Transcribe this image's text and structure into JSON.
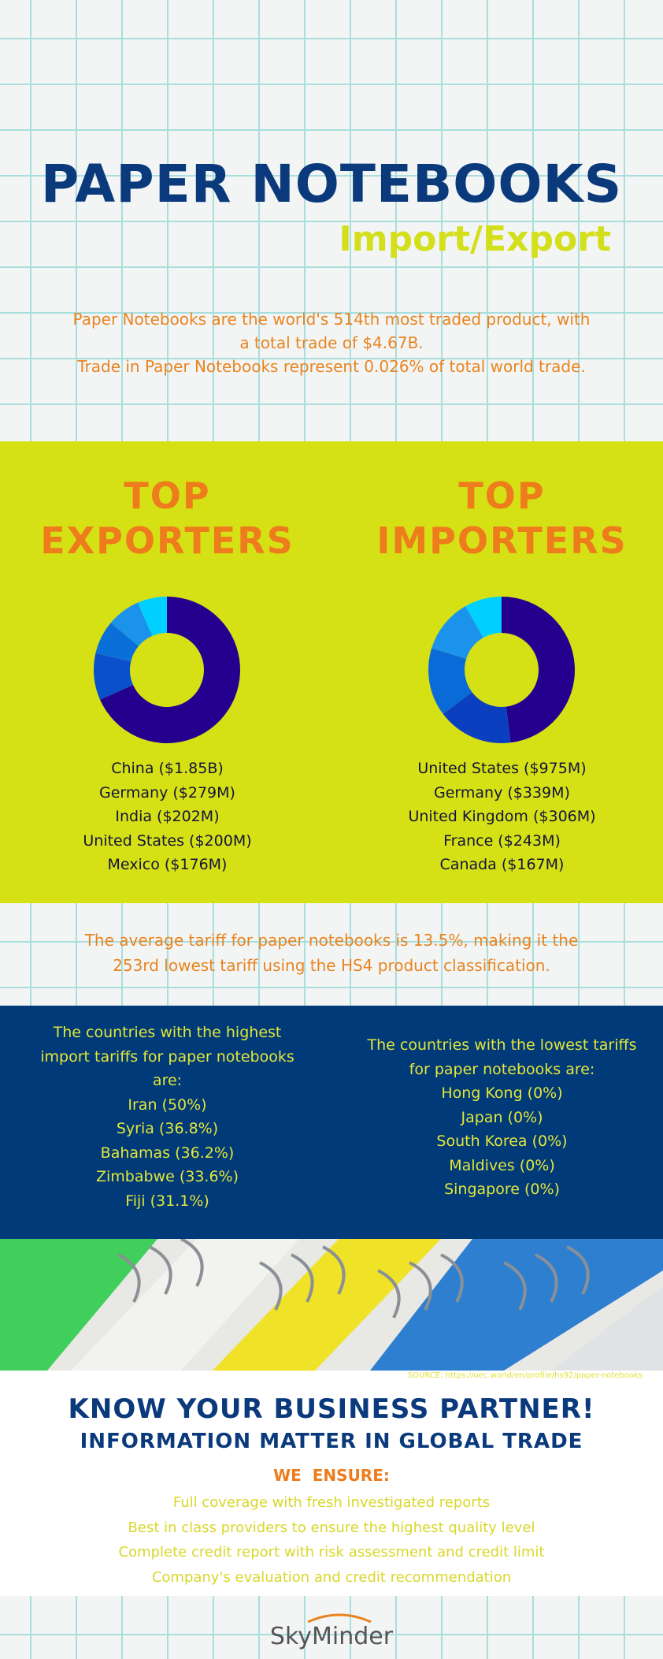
{
  "header": {
    "title": "PAPER NOTEBOOKS",
    "subtitle": "Import/Export",
    "intro": [
      "Paper Notebooks are the world's 514th most traded product, with",
      "a total trade of $4.67B.",
      "Trade in Paper Notebooks represent 0.026% of total world trade."
    ]
  },
  "chart_data": [
    {
      "type": "pie",
      "title_lines": [
        "TOP",
        "EXPORTERS"
      ],
      "categories": [
        "China ($1.85B)",
        "Germany ($279M)",
        "India ($202M)",
        "United States ($200M)",
        "Mexico ($176M)"
      ],
      "values": [
        1850,
        279,
        202,
        200,
        176
      ],
      "colors": [
        "#25008f",
        "#0a4fcc",
        "#0a6fd8",
        "#1b93ea",
        "#00d0ff"
      ]
    },
    {
      "type": "pie",
      "title_lines": [
        "TOP",
        "IMPORTERS"
      ],
      "categories": [
        "United States ($975M)",
        "Germany ($339M)",
        "United Kingdom ($306M)",
        "France ($243M)",
        "Canada ($167M)"
      ],
      "values": [
        975,
        339,
        306,
        243,
        167
      ],
      "colors": [
        "#25008f",
        "#0a3fc0",
        "#0a6ad8",
        "#1b93ea",
        "#00d0ff"
      ]
    }
  ],
  "tariff": [
    "The average tariff for paper notebooks is 13.5%, making it the",
    "253rd lowest tariff using the HS4 product classification."
  ],
  "highest": {
    "intro": [
      "The countries with the highest",
      "import tariffs for paper notebooks",
      "are:"
    ],
    "items": [
      "Iran (50%)",
      "Syria (36.8%)",
      "Bahamas (36.2%)",
      "Zimbabwe (33.6%)",
      "Fiji (31.1%)"
    ]
  },
  "lowest": {
    "intro": [
      "The countries with the lowest tariffs",
      "for paper notebooks are:"
    ],
    "items": [
      "Hong Kong (0%)",
      "Japan (0%)",
      "South Korea (0%)",
      "Maldives (0%)",
      "Singapore (0%)"
    ]
  },
  "source": "SOURCE: https://oec.world/en/profile/hs92/paper-notebooks",
  "footer": {
    "headline": "KNOW YOUR BUSINESS PARTNER!",
    "subheadline": "INFORMATION MATTER IN GLOBAL TRADE",
    "ensure_title": "WE  ENSURE:",
    "ensure_items": [
      "Full coverage with fresh investigated reports",
      "Best in class providers to ensure the highest quality level",
      "Complete credit report with risk assessment and credit limit",
      "Company's evaluation and credit recommendation"
    ],
    "logo": "SkyMinder"
  }
}
